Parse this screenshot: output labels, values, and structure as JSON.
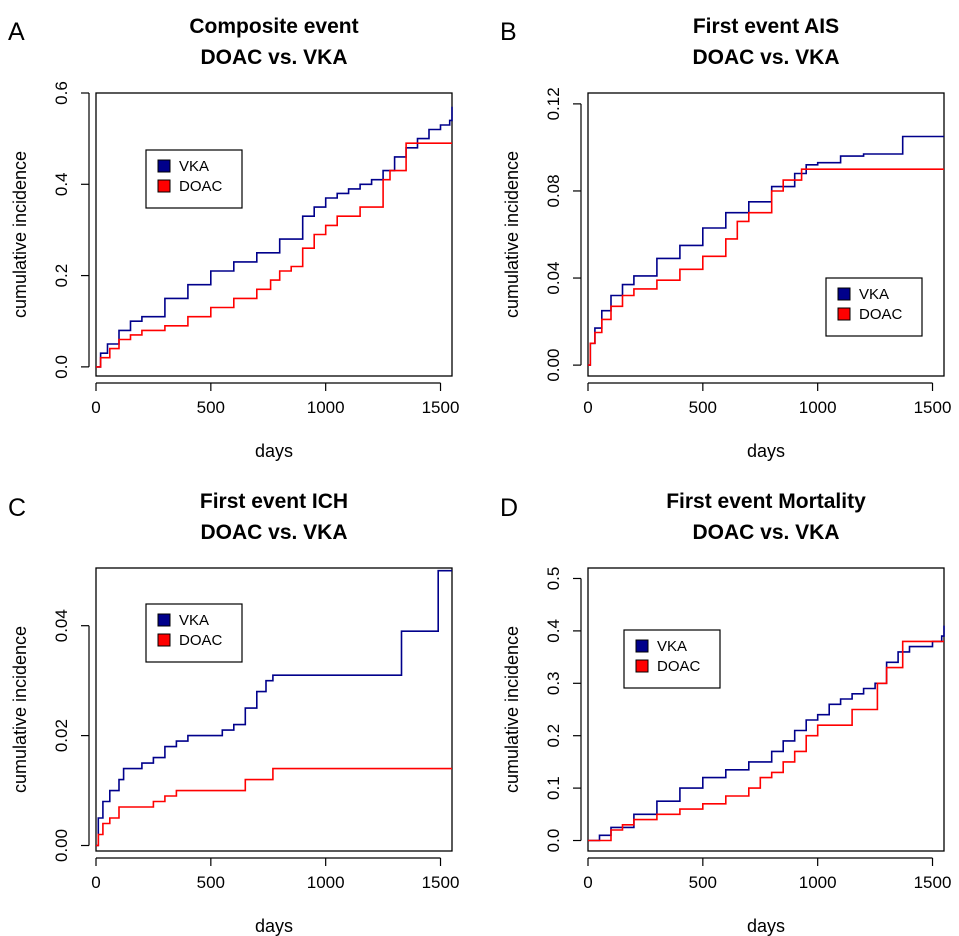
{
  "colors": {
    "VKA": "#00008B",
    "DOAC": "#FF0000"
  },
  "chart_data": [
    {
      "panel_letter": "A",
      "type": "line",
      "step": true,
      "title_line1": "Composite event",
      "title_line2": "DOAC vs. VKA",
      "xlabel": "days",
      "ylabel": "cumulative incidence",
      "xlim": [
        0,
        1550
      ],
      "ylim": [
        -0.02,
        0.6
      ],
      "xticks": [
        "0",
        "500",
        "1000",
        "1500"
      ],
      "yticks": [
        "0.0",
        "0.2",
        "0.4",
        "0.6"
      ],
      "legend_position": "top-left",
      "series": [
        {
          "name": "VKA",
          "color": "#00008B",
          "x": [
            0,
            20,
            50,
            100,
            150,
            200,
            300,
            400,
            500,
            600,
            700,
            800,
            900,
            950,
            1000,
            1050,
            1100,
            1150,
            1200,
            1250,
            1300,
            1350,
            1400,
            1450,
            1500,
            1540,
            1550
          ],
          "y": [
            0,
            0.03,
            0.05,
            0.08,
            0.1,
            0.11,
            0.15,
            0.18,
            0.21,
            0.23,
            0.25,
            0.28,
            0.33,
            0.35,
            0.37,
            0.38,
            0.39,
            0.4,
            0.41,
            0.43,
            0.46,
            0.48,
            0.5,
            0.52,
            0.53,
            0.54,
            0.57
          ]
        },
        {
          "name": "DOAC",
          "color": "#FF0000",
          "x": [
            0,
            20,
            60,
            100,
            150,
            200,
            300,
            400,
            500,
            600,
            700,
            760,
            800,
            850,
            900,
            950,
            1000,
            1050,
            1150,
            1250,
            1280,
            1350,
            1550
          ],
          "y": [
            0,
            0.02,
            0.04,
            0.06,
            0.07,
            0.08,
            0.09,
            0.11,
            0.13,
            0.15,
            0.17,
            0.19,
            0.21,
            0.22,
            0.26,
            0.29,
            0.31,
            0.33,
            0.35,
            0.41,
            0.43,
            0.49,
            0.49
          ]
        }
      ]
    },
    {
      "panel_letter": "B",
      "type": "line",
      "step": true,
      "title_line1": "First event AIS",
      "title_line2": "DOAC vs. VKA",
      "xlabel": "days",
      "ylabel": "cumulative incidence",
      "xlim": [
        0,
        1550
      ],
      "ylim": [
        -0.005,
        0.125
      ],
      "xticks": [
        "0",
        "500",
        "1000",
        "1500"
      ],
      "yticks": [
        "0.00",
        "0.04",
        "0.08",
        "0.12"
      ],
      "legend_position": "bottom-right",
      "series": [
        {
          "name": "VKA",
          "color": "#00008B",
          "x": [
            0,
            10,
            30,
            60,
            100,
            150,
            200,
            300,
            400,
            500,
            600,
            700,
            800,
            900,
            950,
            1000,
            1100,
            1200,
            1370,
            1550
          ],
          "y": [
            0,
            0.01,
            0.017,
            0.025,
            0.032,
            0.037,
            0.041,
            0.049,
            0.055,
            0.063,
            0.07,
            0.075,
            0.082,
            0.088,
            0.092,
            0.093,
            0.096,
            0.097,
            0.105,
            0.105
          ]
        },
        {
          "name": "DOAC",
          "color": "#FF0000",
          "x": [
            0,
            10,
            30,
            60,
            100,
            150,
            200,
            300,
            400,
            500,
            600,
            650,
            700,
            800,
            850,
            930,
            1550
          ],
          "y": [
            0,
            0.01,
            0.015,
            0.021,
            0.027,
            0.032,
            0.035,
            0.039,
            0.044,
            0.05,
            0.058,
            0.066,
            0.07,
            0.08,
            0.085,
            0.09,
            0.09
          ]
        }
      ]
    },
    {
      "panel_letter": "C",
      "type": "line",
      "step": true,
      "title_line1": "First event ICH",
      "title_line2": "DOAC vs. VKA",
      "xlabel": "days",
      "ylabel": "cumulative incidence",
      "xlim": [
        0,
        1550
      ],
      "ylim": [
        -0.001,
        0.0505
      ],
      "xticks": [
        "0",
        "500",
        "1000",
        "1500"
      ],
      "yticks": [
        "0.00",
        "0.02",
        "0.04"
      ],
      "legend_position": "top-left",
      "series": [
        {
          "name": "VKA",
          "color": "#00008B",
          "x": [
            0,
            10,
            30,
            60,
            100,
            120,
            200,
            250,
            300,
            350,
            400,
            500,
            550,
            600,
            650,
            700,
            740,
            770,
            800,
            1000,
            1330,
            1490,
            1550
          ],
          "y": [
            0,
            0.005,
            0.008,
            0.01,
            0.012,
            0.014,
            0.015,
            0.016,
            0.018,
            0.019,
            0.02,
            0.02,
            0.021,
            0.022,
            0.025,
            0.028,
            0.03,
            0.031,
            0.031,
            0.031,
            0.039,
            0.05,
            0.05
          ]
        },
        {
          "name": "DOAC",
          "color": "#FF0000",
          "x": [
            0,
            10,
            30,
            60,
            100,
            250,
            300,
            350,
            650,
            770,
            1550
          ],
          "y": [
            0,
            0.002,
            0.004,
            0.005,
            0.007,
            0.008,
            0.009,
            0.01,
            0.012,
            0.014,
            0.014
          ]
        }
      ]
    },
    {
      "panel_letter": "D",
      "type": "line",
      "step": true,
      "title_line1": "First event Mortality",
      "title_line2": "DOAC vs. VKA",
      "xlabel": "days",
      "ylabel": "cumulative incidence",
      "xlim": [
        0,
        1550
      ],
      "ylim": [
        -0.02,
        0.52
      ],
      "xticks": [
        "0",
        "500",
        "1000",
        "1500"
      ],
      "yticks": [
        "0.0",
        "0.1",
        "0.2",
        "0.3",
        "0.4",
        "0.5"
      ],
      "legend_position": "top-left",
      "series": [
        {
          "name": "VKA",
          "color": "#00008B",
          "x": [
            0,
            50,
            100,
            200,
            300,
            400,
            500,
            600,
            700,
            800,
            850,
            900,
            950,
            1000,
            1050,
            1100,
            1150,
            1200,
            1250,
            1300,
            1350,
            1400,
            1450,
            1500,
            1540,
            1550
          ],
          "y": [
            0,
            0.01,
            0.025,
            0.05,
            0.075,
            0.1,
            0.12,
            0.135,
            0.15,
            0.17,
            0.19,
            0.21,
            0.23,
            0.24,
            0.26,
            0.27,
            0.28,
            0.29,
            0.3,
            0.34,
            0.36,
            0.37,
            0.37,
            0.38,
            0.39,
            0.41
          ]
        },
        {
          "name": "DOAC",
          "color": "#FF0000",
          "x": [
            0,
            100,
            150,
            200,
            300,
            400,
            500,
            600,
            700,
            750,
            800,
            850,
            900,
            950,
            1000,
            1100,
            1150,
            1260,
            1300,
            1370,
            1550
          ],
          "y": [
            0,
            0.02,
            0.03,
            0.04,
            0.05,
            0.06,
            0.07,
            0.085,
            0.1,
            0.12,
            0.13,
            0.15,
            0.17,
            0.2,
            0.22,
            0.22,
            0.25,
            0.3,
            0.33,
            0.38,
            0.38
          ]
        }
      ]
    }
  ]
}
